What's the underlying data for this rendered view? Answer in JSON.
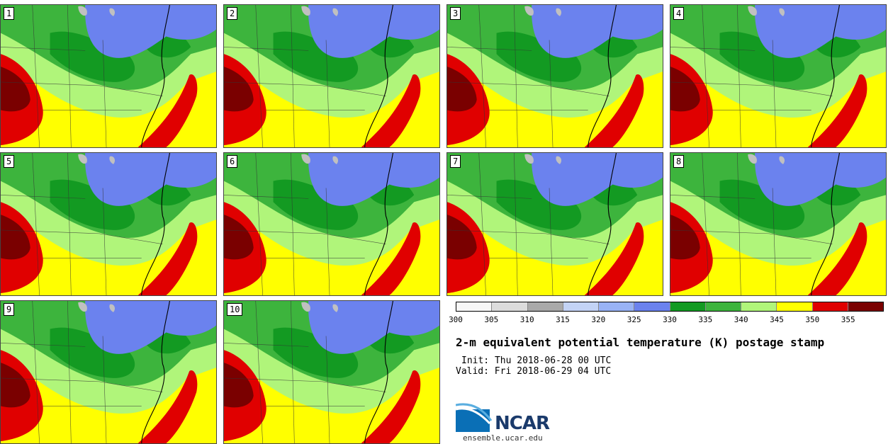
{
  "panels": [
    "1",
    "2",
    "3",
    "4",
    "5",
    "6",
    "7",
    "8",
    "9",
    "10"
  ],
  "colorbar": {
    "colors": [
      "#f7f7f7",
      "#dcdcdc",
      "#a9a9a9",
      "#c3d3f5",
      "#99b3f5",
      "#6b82ee",
      "#139a22",
      "#3db43d",
      "#b0f57a",
      "#ffff00",
      "#e00000",
      "#7a0000"
    ],
    "ticks": [
      "300",
      "305",
      "310",
      "315",
      "320",
      "325",
      "330",
      "335",
      "340",
      "345",
      "350",
      "355"
    ]
  },
  "title": "2-m equivalent potential temperature (K) postage stamp",
  "init": "Init: Thu 2018-06-28 00 UTC",
  "valid": "Valid: Fri 2018-06-29 04 UTC",
  "logo": {
    "name": "NCAR",
    "url": "ensemble.ucar.edu"
  },
  "palette": {
    "blue": "#6b82ee",
    "green_dark": "#139a22",
    "green_mid": "#3db43d",
    "green_light": "#b0f57a",
    "yellow": "#ffff00",
    "red": "#e00000",
    "dark_red": "#7a0000",
    "lake": "#c0c0c0"
  }
}
